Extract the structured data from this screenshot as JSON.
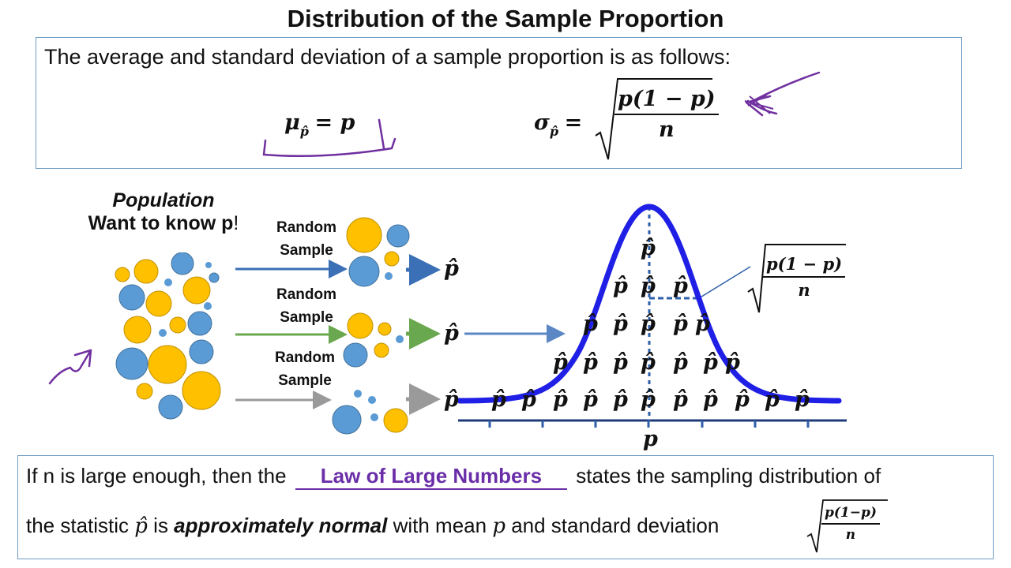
{
  "title": "Distribution of the Sample Proportion",
  "intro": "The average and standard deviation of a sample proportion is as follows:",
  "formula_mean": {
    "lhs": "μ",
    "sub": "p̂",
    "rhs": "= p"
  },
  "formula_sd": {
    "lhs": "σ",
    "sub": "p̂",
    "eq": "=",
    "numerator": "p(1 − p)",
    "denominator": "n"
  },
  "population": {
    "title": "Population",
    "subtitle": "Want to know p",
    "subtitle_mark": "!"
  },
  "sample_label": [
    "Random",
    "Sample"
  ],
  "phat_symbol": "p̂",
  "axis_center_label": "p",
  "annotation_sd": {
    "numerator": "p(1 − p)",
    "denominator": "n"
  },
  "bottom": {
    "line1_prefix": "If n is large enough, then the ",
    "blank_answer": "Law of Large Numbers",
    "line1_suffix": " states the sampling distribution of",
    "line2_prefix": "the statistic ",
    "line2_phat": "p̂",
    "line2_mid": " is ",
    "line2_em": "approximately normal",
    "line2_with": " with mean ",
    "line2_p": "p",
    "line2_suffix": " and standard deviation",
    "sd_numerator": "p(1−p)",
    "sd_denominator": "n"
  },
  "colors": {
    "box_border": "#6f9cc4",
    "curve": "#1f1fe6",
    "arrow_blue": "#3b6fb6",
    "arrow_green": "#6aa84f",
    "arrow_gray": "#9a9a9a",
    "circle_blue": "#5b9bd5",
    "circle_gold": "#ffc000",
    "annotation": "#7030a0"
  }
}
